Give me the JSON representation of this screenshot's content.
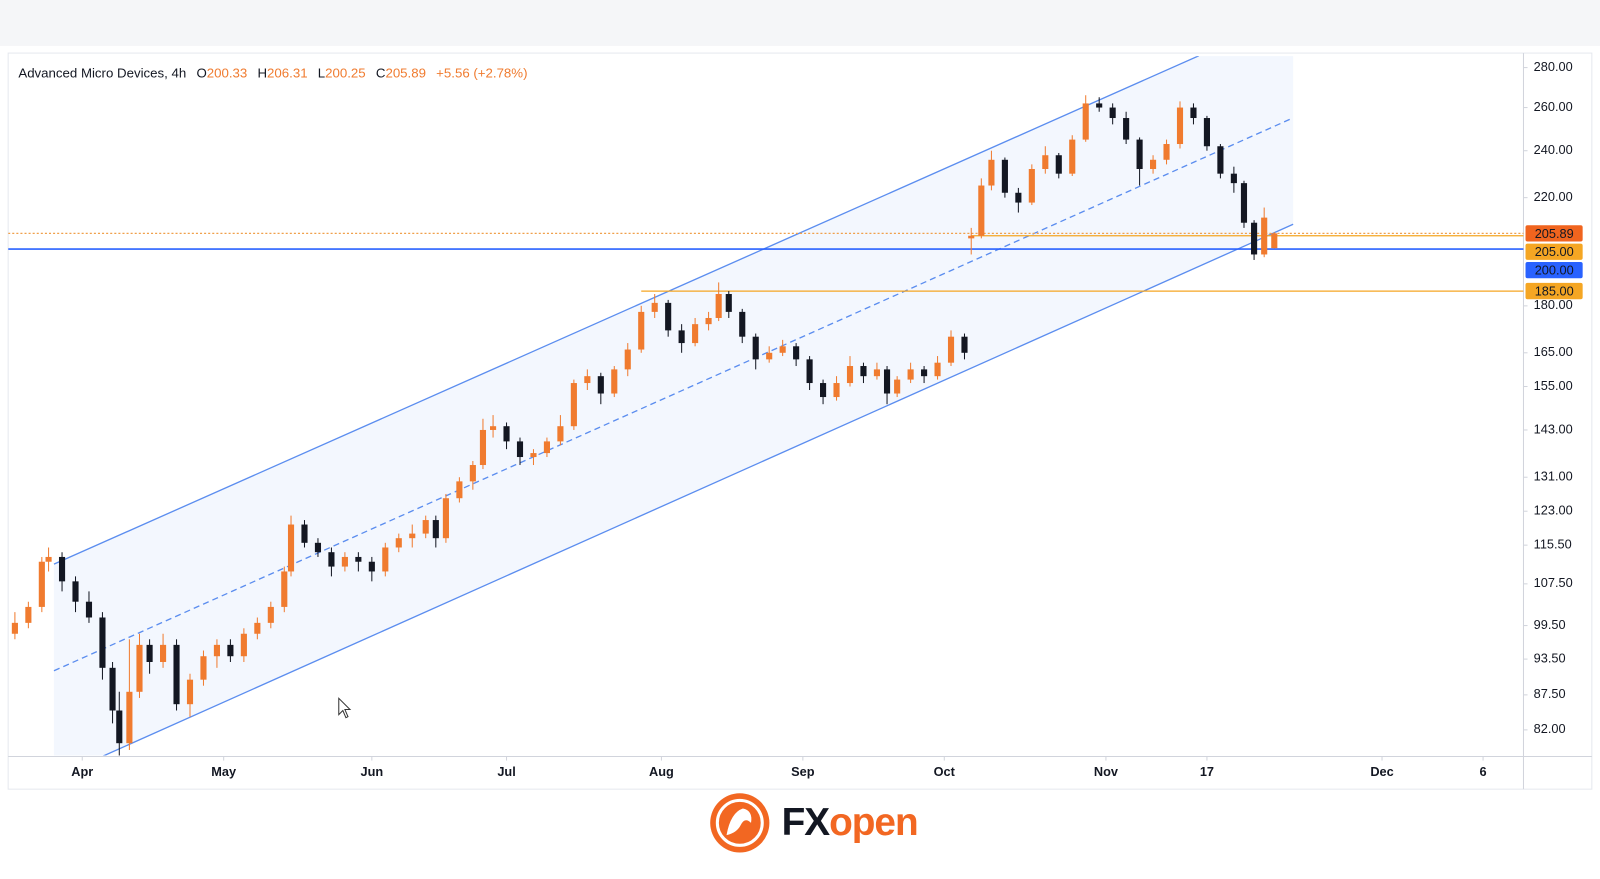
{
  "chart_data": {
    "type": "candlestick",
    "title": "Advanced Micro Devices, 4h",
    "ohlc": [
      {
        "key": "O",
        "value": 200.33
      },
      {
        "key": "H",
        "value": 206.31
      },
      {
        "key": "L",
        "value": 200.25
      },
      {
        "key": "C",
        "value": 205.89
      }
    ],
    "change": "+5.56 (+2.78%)",
    "up_color": "#f07b2f",
    "down_color": "#131722",
    "log_scale": true,
    "grid": false,
    "xlim": [
      -11,
      214
    ],
    "xticks": [
      {
        "value": 0,
        "label": "Apr"
      },
      {
        "value": 21,
        "label": "May"
      },
      {
        "value": 43,
        "label": "Jun"
      },
      {
        "value": 63,
        "label": "Jul"
      },
      {
        "value": 86,
        "label": "Aug"
      },
      {
        "value": 107,
        "label": "Sep"
      },
      {
        "value": 128,
        "label": "Oct"
      },
      {
        "value": 152,
        "label": "Nov"
      },
      {
        "value": 167,
        "label": "17"
      },
      {
        "value": 193,
        "label": "Dec"
      },
      {
        "value": 208,
        "label": "6"
      }
    ],
    "ylim": [
      78.2,
      286
    ],
    "yticks": [
      {
        "value": 82,
        "label": "82.00"
      },
      {
        "value": 87.5,
        "label": "87.50"
      },
      {
        "value": 93.5,
        "label": "93.50"
      },
      {
        "value": 99.5,
        "label": "99.50"
      },
      {
        "value": 107.5,
        "label": "107.50"
      },
      {
        "value": 115.5,
        "label": "115.50"
      },
      {
        "value": 123,
        "label": "123.00"
      },
      {
        "value": 131,
        "label": "131.00"
      },
      {
        "value": 143,
        "label": "143.00"
      },
      {
        "value": 155,
        "label": "155.00"
      },
      {
        "value": 165,
        "label": "165.00"
      },
      {
        "value": 180,
        "label": "180.00"
      },
      {
        "value": 220,
        "label": "220.00"
      },
      {
        "value": 240,
        "label": "240.00"
      },
      {
        "value": 260,
        "label": "260.00"
      },
      {
        "value": 280,
        "label": "280.00"
      }
    ],
    "x": [
      -10,
      -8,
      -6,
      -5,
      -3,
      -1,
      1,
      3,
      4.5,
      5.5,
      7,
      8.5,
      10,
      12,
      14,
      16,
      18,
      20,
      22,
      24,
      26,
      28,
      30,
      31,
      33,
      35,
      37,
      39,
      41,
      43,
      45,
      47,
      49,
      51,
      52.5,
      54,
      56,
      58,
      59.5,
      61,
      63,
      65,
      67,
      69,
      71,
      73,
      75,
      77,
      79,
      81,
      83,
      85,
      87,
      89,
      91,
      93,
      94.5,
      96,
      98,
      100,
      102,
      104,
      106,
      108,
      110,
      112,
      114,
      116,
      118,
      119.5,
      121,
      123,
      125,
      127,
      129,
      131,
      132,
      133.5,
      135,
      137,
      139,
      141,
      143,
      145,
      147,
      149,
      151,
      153,
      155,
      157,
      159,
      161,
      163,
      165,
      167,
      169,
      171,
      172.5,
      174,
      175.5,
      177
    ],
    "open": [
      98,
      100,
      103,
      112,
      113,
      108,
      104,
      101,
      92,
      85,
      80,
      88,
      96,
      93,
      96,
      86,
      90,
      94,
      96,
      94,
      98,
      100,
      103,
      110,
      120,
      116,
      114,
      111,
      113,
      112,
      110,
      115,
      117,
      118,
      121,
      117,
      126,
      130,
      134,
      143,
      144,
      140,
      136,
      137,
      140,
      144,
      156,
      158,
      153,
      160,
      166,
      178,
      181,
      172,
      168,
      174,
      176,
      184,
      178,
      170,
      163,
      165,
      167,
      163,
      156,
      152,
      156,
      161,
      158,
      160,
      153,
      157,
      160,
      158,
      162,
      170,
      204,
      205,
      225,
      236,
      222,
      218,
      232,
      238,
      230,
      245,
      262,
      260,
      255,
      245,
      232,
      236,
      243,
      260,
      255,
      242,
      230,
      226,
      210,
      198,
      200.33
    ],
    "high": [
      102,
      104,
      113,
      115,
      114,
      109,
      106,
      102,
      93,
      88,
      97,
      98,
      97,
      98,
      97,
      91,
      95,
      97,
      97,
      99,
      101,
      104,
      111,
      122,
      121,
      117,
      115,
      114,
      114,
      113,
      116,
      118,
      120,
      122,
      122,
      127,
      131,
      135,
      146,
      147,
      145,
      141,
      138,
      141,
      147,
      157,
      160,
      159,
      161,
      168,
      180,
      184,
      182,
      174,
      176,
      178,
      188,
      185,
      179,
      171,
      167,
      169,
      168,
      164,
      157,
      158,
      164,
      162,
      162,
      161,
      158,
      162,
      161,
      164,
      172,
      171,
      208,
      228,
      240,
      237,
      224,
      234,
      242,
      239,
      247,
      266,
      265,
      262,
      258,
      246,
      238,
      245,
      263,
      262,
      256,
      243,
      233,
      227,
      211,
      216,
      206.31
    ],
    "low": [
      97,
      99,
      102,
      110,
      106,
      102,
      100,
      90,
      83,
      78,
      79,
      87,
      91,
      92,
      85,
      84,
      89,
      92,
      93,
      93,
      97,
      99,
      102,
      109,
      115,
      113,
      109,
      110,
      110,
      108,
      109,
      114,
      115,
      117,
      115,
      116,
      125,
      128,
      133,
      141,
      138,
      134,
      134,
      136,
      139,
      143,
      154,
      150,
      152,
      158,
      165,
      176,
      170,
      165,
      167,
      172,
      175,
      176,
      168,
      160,
      162,
      164,
      161,
      154,
      150,
      151,
      155,
      156,
      157,
      150,
      152,
      156,
      156,
      157,
      161,
      163,
      198,
      204,
      223,
      220,
      214,
      217,
      230,
      228,
      229,
      244,
      258,
      252,
      243,
      225,
      230,
      234,
      241,
      252,
      240,
      228,
      222,
      208,
      196,
      197,
      200.25
    ],
    "close": [
      100,
      103,
      112,
      113,
      108,
      104,
      101,
      92,
      85,
      80,
      88,
      96,
      93,
      96,
      86,
      90,
      94,
      96,
      94,
      98,
      100,
      103,
      110,
      120,
      116,
      114,
      111,
      113,
      112,
      110,
      115,
      117,
      118,
      121,
      117,
      126,
      130,
      134,
      143,
      144,
      140,
      136,
      137,
      140,
      144,
      156,
      158,
      153,
      160,
      166,
      178,
      181,
      172,
      168,
      174,
      176,
      184,
      178,
      170,
      163,
      165,
      167,
      163,
      156,
      152,
      156,
      161,
      158,
      160,
      153,
      157,
      160,
      158,
      162,
      170,
      165,
      205,
      225,
      236,
      222,
      218,
      232,
      238,
      230,
      245,
      262,
      260,
      255,
      245,
      232,
      236,
      243,
      260,
      255,
      242,
      230,
      226,
      210,
      198,
      212,
      205.89
    ],
    "channel": {
      "color": "#5b8def",
      "upper": {
        "x": [
          -4.2,
          165.8
        ],
        "y": [
          111.5,
          286.2
        ]
      },
      "middle": {
        "x": [
          -4.2,
          179.4
        ],
        "y": [
          91.5,
          254.5
        ]
      },
      "lower": {
        "x": [
          2.6,
          179.8
        ],
        "y": [
          77.9,
          209.4
        ]
      }
    },
    "hlines": [
      {
        "value": 205.89,
        "label": "205.89",
        "color": "#f0641e",
        "line_color": "#f0a04b",
        "style": "dotted",
        "from": -11
      },
      {
        "value": 205,
        "label": "205.00",
        "color": "#f5a623",
        "line_color": "#f5a623",
        "style": "solid",
        "from": 132
      },
      {
        "value": 200,
        "label": "200.00",
        "color": "#2962ff",
        "line_color": "#2962ff",
        "style": "solid",
        "from": -11
      },
      {
        "value": 185,
        "label": "185.00",
        "color": "#f5a623",
        "line_color": "#f5a623",
        "style": "solid",
        "from": 83
      }
    ]
  },
  "logo": {
    "prefix": "FX",
    "suffix": "open"
  }
}
